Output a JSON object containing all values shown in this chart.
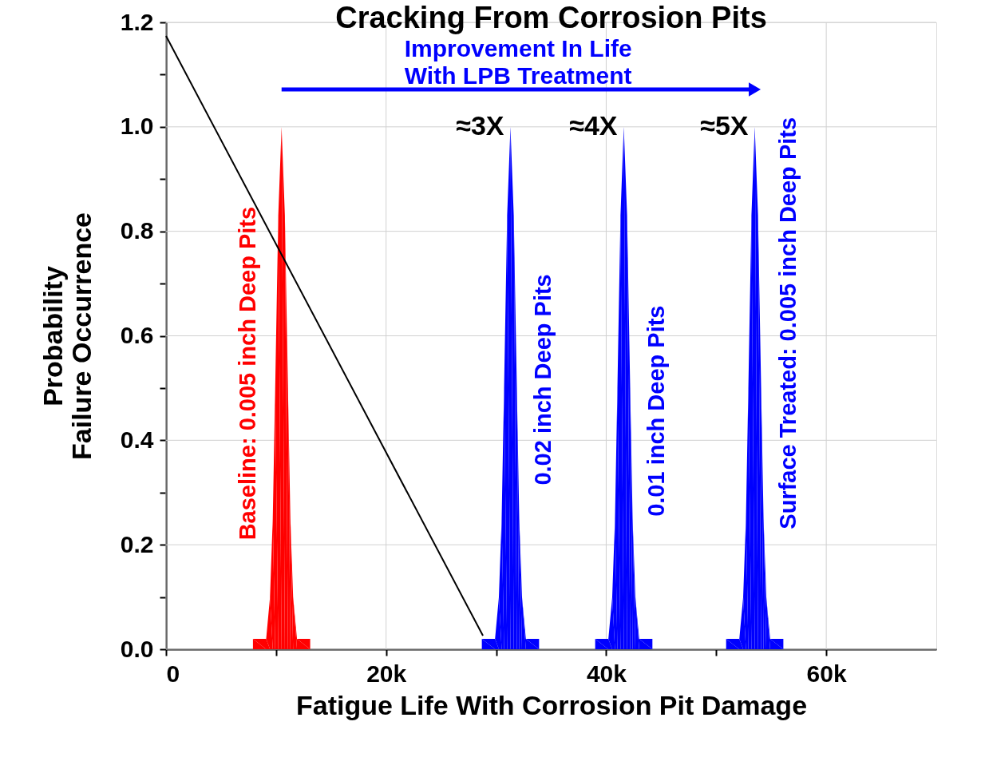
{
  "chart_data": {
    "type": "area",
    "title": "Cracking From Corrosion Pits",
    "xlabel": "Fatigue Life With Corrosion Pit Damage",
    "ylabel": "Probability\nFailure Occurrence",
    "series": [
      {
        "name": "Baseline: 0.005 inch Deep Pits",
        "color": "#ff0000",
        "x": [
          7900,
          7900,
          9100,
          9450,
          9700,
          9920,
          10200,
          10500,
          10800,
          11080,
          11300,
          11550,
          11900,
          13100,
          13100
        ],
        "values": [
          0,
          0.02,
          0.02,
          0.1,
          0.25,
          0.5,
          0.83,
          1,
          0.83,
          0.5,
          0.25,
          0.1,
          0.02,
          0.02,
          0
        ]
      },
      {
        "name": "0.02 inch Deep Pits",
        "color": "#0000ff",
        "x": [
          28700,
          28700,
          29900,
          30250,
          30500,
          30720,
          31000,
          31300,
          31600,
          31880,
          32100,
          32350,
          32700,
          33900,
          33900
        ],
        "values": [
          0,
          0.02,
          0.02,
          0.1,
          0.25,
          0.5,
          0.83,
          1,
          0.83,
          0.5,
          0.25,
          0.1,
          0.02,
          0.02,
          0
        ]
      },
      {
        "name": "0.01 inch Deep Pits",
        "color": "#0000ff",
        "x": [
          39000,
          39000,
          40200,
          40550,
          40800,
          41020,
          41300,
          41600,
          41900,
          42180,
          42400,
          42650,
          43000,
          44200,
          44200
        ],
        "values": [
          0,
          0.02,
          0.02,
          0.1,
          0.25,
          0.5,
          0.83,
          1,
          0.83,
          0.5,
          0.25,
          0.1,
          0.02,
          0.02,
          0
        ]
      },
      {
        "name": "Surface Treated: 0.005 inch Deep Pits",
        "color": "#0000ff",
        "x": [
          50900,
          50900,
          52100,
          52450,
          52700,
          52920,
          53200,
          53500,
          53800,
          54080,
          54300,
          54550,
          54900,
          56100,
          56100
        ],
        "values": [
          0,
          0.02,
          0.02,
          0.1,
          0.25,
          0.5,
          0.83,
          1,
          0.83,
          0.5,
          0.25,
          0.1,
          0.02,
          0.02,
          0
        ]
      },
      {
        "type": "line",
        "color": "#000000",
        "x": [
          0,
          28800
        ],
        "values": [
          1.174,
          0.026
        ]
      }
    ],
    "annotations": [
      "≈3X",
      "≈4X",
      "≈5X",
      "Improvement In Life\nWith LPB Treatment"
    ],
    "xlim": [
      0,
      70000
    ],
    "ylim": [
      0,
      1.2
    ],
    "xticks": [
      0,
      {
        "value": 10000,
        "label": null
      },
      {
        "value": 20000,
        "label": "20k"
      },
      {
        "value": 30000,
        "label": null
      },
      {
        "value": 40000,
        "label": "40k"
      },
      {
        "value": 50000,
        "label": null
      },
      {
        "value": 60000,
        "label": "60k"
      }
    ],
    "yticks": [
      {
        "value": 0,
        "label": "0.0"
      },
      {
        "value": 0.1,
        "label": null
      },
      {
        "value": 0.2,
        "label": "0.2"
      },
      {
        "value": 0.3,
        "label": null
      },
      {
        "value": 0.4,
        "label": "0.4"
      },
      {
        "value": 0.5,
        "label": null
      },
      {
        "value": 0.6,
        "label": "0.6"
      },
      {
        "value": 0.7,
        "label": null
      },
      {
        "value": 0.8,
        "label": "0.8"
      },
      {
        "value": 0.9,
        "label": null
      },
      {
        "value": 1.0,
        "label": "1.0"
      },
      {
        "value": 1.1,
        "label": null
      },
      {
        "value": 1.2,
        "label": "1.2"
      }
    ],
    "grid": true
  }
}
